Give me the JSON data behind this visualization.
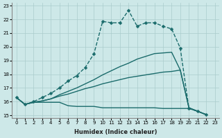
{
  "xlabel": "Humidex (Indice chaleur)",
  "xlim": [
    -0.5,
    23.5
  ],
  "ylim": [
    14.8,
    23.2
  ],
  "xticks": [
    0,
    1,
    2,
    3,
    4,
    5,
    6,
    7,
    8,
    9,
    10,
    11,
    12,
    13,
    14,
    15,
    16,
    17,
    18,
    19,
    20,
    21,
    22,
    23
  ],
  "yticks": [
    15,
    16,
    17,
    18,
    19,
    20,
    21,
    22,
    23
  ],
  "bg_color": "#cde8e8",
  "line_color": "#1a6b6b",
  "grid_color": "#aacccc",
  "lines": [
    {
      "x": [
        0,
        1,
        2,
        3,
        4,
        5,
        6,
        7,
        8,
        9,
        10,
        11,
        12,
        13,
        14,
        15,
        16,
        17,
        18,
        19,
        20,
        21,
        22
      ],
      "y": [
        16.3,
        15.8,
        16.0,
        16.3,
        16.6,
        17.0,
        17.5,
        17.9,
        18.5,
        19.5,
        21.85,
        21.75,
        21.75,
        22.65,
        21.5,
        21.75,
        21.75,
        21.5,
        21.3,
        19.9,
        15.5,
        15.3,
        15.05
      ],
      "marker": "D",
      "markersize": 2.5,
      "linewidth": 1.0,
      "linestyle": "--"
    },
    {
      "x": [
        0,
        1,
        2,
        3,
        4,
        5,
        6,
        7,
        8,
        9,
        10,
        11,
        12,
        13,
        14,
        15,
        16,
        17,
        18,
        19,
        20,
        21,
        22
      ],
      "y": [
        16.3,
        15.8,
        15.95,
        15.95,
        15.95,
        15.95,
        15.7,
        15.65,
        15.65,
        15.65,
        15.55,
        15.55,
        15.55,
        15.55,
        15.55,
        15.55,
        15.55,
        15.5,
        15.5,
        15.5,
        15.5,
        15.3,
        15.05
      ],
      "marker": null,
      "markersize": 0,
      "linewidth": 1.0,
      "linestyle": "-"
    },
    {
      "x": [
        0,
        1,
        2,
        3,
        4,
        5,
        6,
        7,
        8,
        9,
        10,
        11,
        12,
        13,
        14,
        15,
        16,
        17,
        18,
        19,
        20,
        21,
        22
      ],
      "y": [
        16.3,
        15.8,
        15.95,
        16.05,
        16.2,
        16.4,
        16.55,
        16.75,
        16.95,
        17.1,
        17.3,
        17.45,
        17.6,
        17.75,
        17.85,
        17.95,
        18.05,
        18.15,
        18.2,
        18.3,
        15.55,
        15.3,
        15.05
      ],
      "marker": null,
      "markersize": 0,
      "linewidth": 1.0,
      "linestyle": "-"
    },
    {
      "x": [
        0,
        1,
        2,
        3,
        4,
        5,
        6,
        7,
        8,
        9,
        10,
        11,
        12,
        13,
        14,
        15,
        16,
        17,
        18,
        19,
        20,
        21,
        22
      ],
      "y": [
        16.3,
        15.8,
        15.95,
        16.05,
        16.2,
        16.5,
        16.75,
        17.0,
        17.3,
        17.6,
        17.95,
        18.25,
        18.55,
        18.8,
        19.1,
        19.3,
        19.5,
        19.55,
        19.6,
        18.3,
        15.55,
        15.3,
        15.05
      ],
      "marker": null,
      "markersize": 0,
      "linewidth": 1.0,
      "linestyle": "-"
    }
  ]
}
